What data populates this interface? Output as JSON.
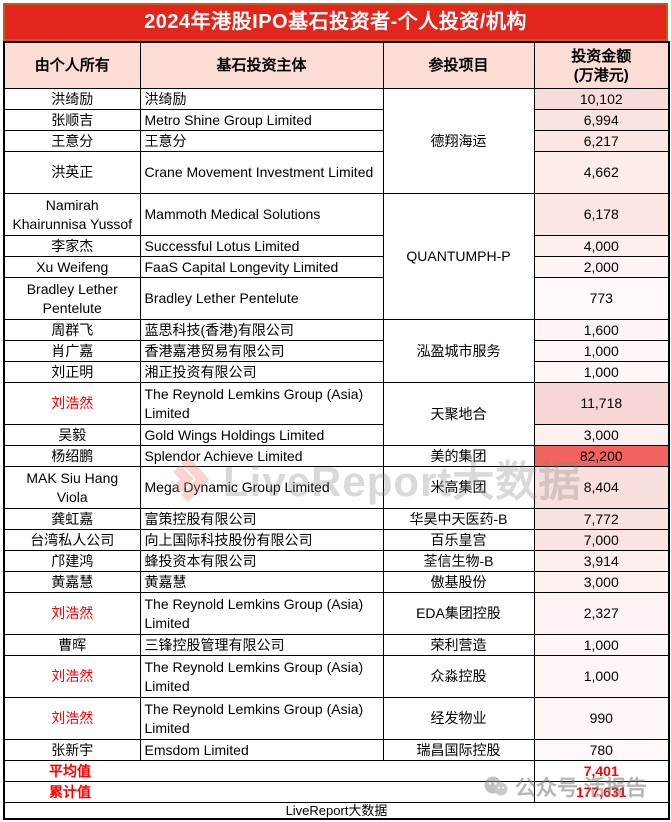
{
  "title": "2024年港股IPO基石投资者-个人投资/机构",
  "columns": {
    "owner": "由个人所有",
    "entity": "基石投资主体",
    "project": "参投项目",
    "amount_line1": "投资金额",
    "amount_line2": "(万港元)"
  },
  "rows": [
    {
      "owner": "洪绮励",
      "entity": "洪绮励",
      "project": "德翔海运",
      "project_rowspan": 4,
      "amount": "10,102",
      "amount_bg": "#F8DCDA",
      "owner_red": false,
      "tall": false
    },
    {
      "owner": "张顺吉",
      "entity": "Metro Shine Group Limited",
      "amount": "6,994",
      "amount_bg": "#FAE4E2",
      "owner_red": false,
      "tall": false
    },
    {
      "owner": "王意分",
      "entity": "王意分",
      "amount": "6,217",
      "amount_bg": "#FBE6E4",
      "owner_red": false,
      "tall": false
    },
    {
      "owner": "洪英正",
      "entity": "Crane Movement Investment Limited",
      "amount": "4,662",
      "amount_bg": "#FCECEA",
      "owner_red": false,
      "tall": true
    },
    {
      "owner": "Namirah Khairunnisa Yussof",
      "entity": "Mammoth Medical Solutions",
      "project": "QUANTUMPH-P",
      "project_rowspan": 4,
      "amount": "6,178",
      "amount_bg": "#FBE6E4",
      "owner_red": false,
      "tall": true
    },
    {
      "owner": "李家杰",
      "entity": "Successful Lotus Limited",
      "amount": "4,000",
      "amount_bg": "#FCEEEC",
      "owner_red": false,
      "tall": false
    },
    {
      "owner": "Xu Weifeng",
      "entity": "FaaS Capital Longevity Limited",
      "amount": "2,000",
      "amount_bg": "#FDF4F3",
      "owner_red": false,
      "tall": false
    },
    {
      "owner": "Bradley Lether Pentelute",
      "entity": "Bradley Lether Pentelute",
      "amount": "773",
      "amount_bg": "#FEF9F8",
      "owner_red": false,
      "tall": true
    },
    {
      "owner": "周群飞",
      "entity": "蓝思科技(香港)有限公司",
      "project": "泓盈城市服务",
      "project_rowspan": 3,
      "amount": "1,600",
      "amount_bg": "#FEF5F4",
      "owner_red": false,
      "tall": false
    },
    {
      "owner": "肖广嘉",
      "entity": "香港嘉港贸易有限公司",
      "amount": "1,000",
      "amount_bg": "#FEF7F6",
      "owner_red": false,
      "tall": false
    },
    {
      "owner": "刘正明",
      "entity": "湘正投资有限公司",
      "amount": "1,000",
      "amount_bg": "#FEF7F6",
      "owner_red": false,
      "tall": false
    },
    {
      "owner": "刘浩然",
      "entity": "The Reynold Lemkins Group (Asia) Limited",
      "project": "天聚地合",
      "project_rowspan": 2,
      "amount": "11,718",
      "amount_bg": "#F7D7D5",
      "owner_red": true,
      "tall": true
    },
    {
      "owner": "吴毅",
      "entity": "Gold Wings Holdings Limited",
      "amount": "3,000",
      "amount_bg": "#FDF1F0",
      "owner_red": false,
      "tall": false
    },
    {
      "owner": "杨绍鹏",
      "entity": "Splendor Achieve Limited",
      "project": "美的集团",
      "project_rowspan": 1,
      "amount": "82,200",
      "amount_bg": "#F2635F",
      "owner_red": false,
      "tall": false
    },
    {
      "owner": "MAK Siu Hang Viola",
      "entity": "Mega Dynamic Group Limited",
      "project": "米高集团",
      "project_rowspan": 1,
      "amount": "8,404",
      "amount_bg": "#F9E0DE",
      "owner_red": false,
      "tall": true
    },
    {
      "owner": "龚虹嘉",
      "entity": "富策控股有限公司",
      "project": "华昊中天医药-B",
      "project_rowspan": 1,
      "amount": "7,772",
      "amount_bg": "#FAE2E0",
      "owner_red": false,
      "tall": false
    },
    {
      "owner": "台湾私人公司",
      "entity": "向上国际科技股份有限公司",
      "project": "百乐皇宫",
      "project_rowspan": 1,
      "amount": "7,000",
      "amount_bg": "#FAE3E1",
      "owner_red": false,
      "tall": false
    },
    {
      "owner": "邝建鸿",
      "entity": "蜂投资本有限公司",
      "project": "荃信生物-B",
      "project_rowspan": 1,
      "amount": "3,914",
      "amount_bg": "#FCEFED",
      "owner_red": false,
      "tall": false
    },
    {
      "owner": "黄嘉慧",
      "entity": "黄嘉慧",
      "project": "傲基股份",
      "project_rowspan": 1,
      "amount": "3,000",
      "amount_bg": "#FDF1F0",
      "owner_red": false,
      "tall": false
    },
    {
      "owner": "刘浩然",
      "entity": "The Reynold Lemkins Group (Asia) Limited",
      "project": "EDA集团控股",
      "project_rowspan": 1,
      "amount": "2,327",
      "amount_bg": "#FDF3F2",
      "owner_red": true,
      "tall": true
    },
    {
      "owner": "曹晖",
      "entity": "三锋控股管理有限公司",
      "project": "荣利营造",
      "project_rowspan": 1,
      "amount": "1,000",
      "amount_bg": "#FEF7F6",
      "owner_red": false,
      "tall": false
    },
    {
      "owner": "刘浩然",
      "entity": "The Reynold Lemkins Group (Asia) Limited",
      "project": "众淼控股",
      "project_rowspan": 1,
      "amount": "1,000",
      "amount_bg": "#FEF7F6",
      "owner_red": true,
      "tall": true
    },
    {
      "owner": "刘浩然",
      "entity": "The Reynold Lemkins Group (Asia) Limited",
      "project": "经发物业",
      "project_rowspan": 1,
      "amount": "990",
      "amount_bg": "#FEF7F6",
      "owner_red": true,
      "tall": true
    },
    {
      "owner": "张新宇",
      "entity": "Emsdom Limited",
      "project": "瑞昌国际控股",
      "project_rowspan": 1,
      "amount": "780",
      "amount_bg": "#FEF9F8",
      "owner_red": false,
      "tall": false
    }
  ],
  "summary_rows": [
    {
      "label": "平均值",
      "amount": "7,401"
    },
    {
      "label": "累计值",
      "amount": "177,631"
    }
  ],
  "footer_text": "LiveReport大数据",
  "watermarks": {
    "center_text": "LiveReport大数据",
    "corner_text": "公众号 活报告"
  },
  "colors": {
    "title_bg": "#E2261C",
    "header_bg": "#FBDDD5",
    "accent_red": "#FE0000",
    "hot_cell_bg": "#F2635F"
  }
}
